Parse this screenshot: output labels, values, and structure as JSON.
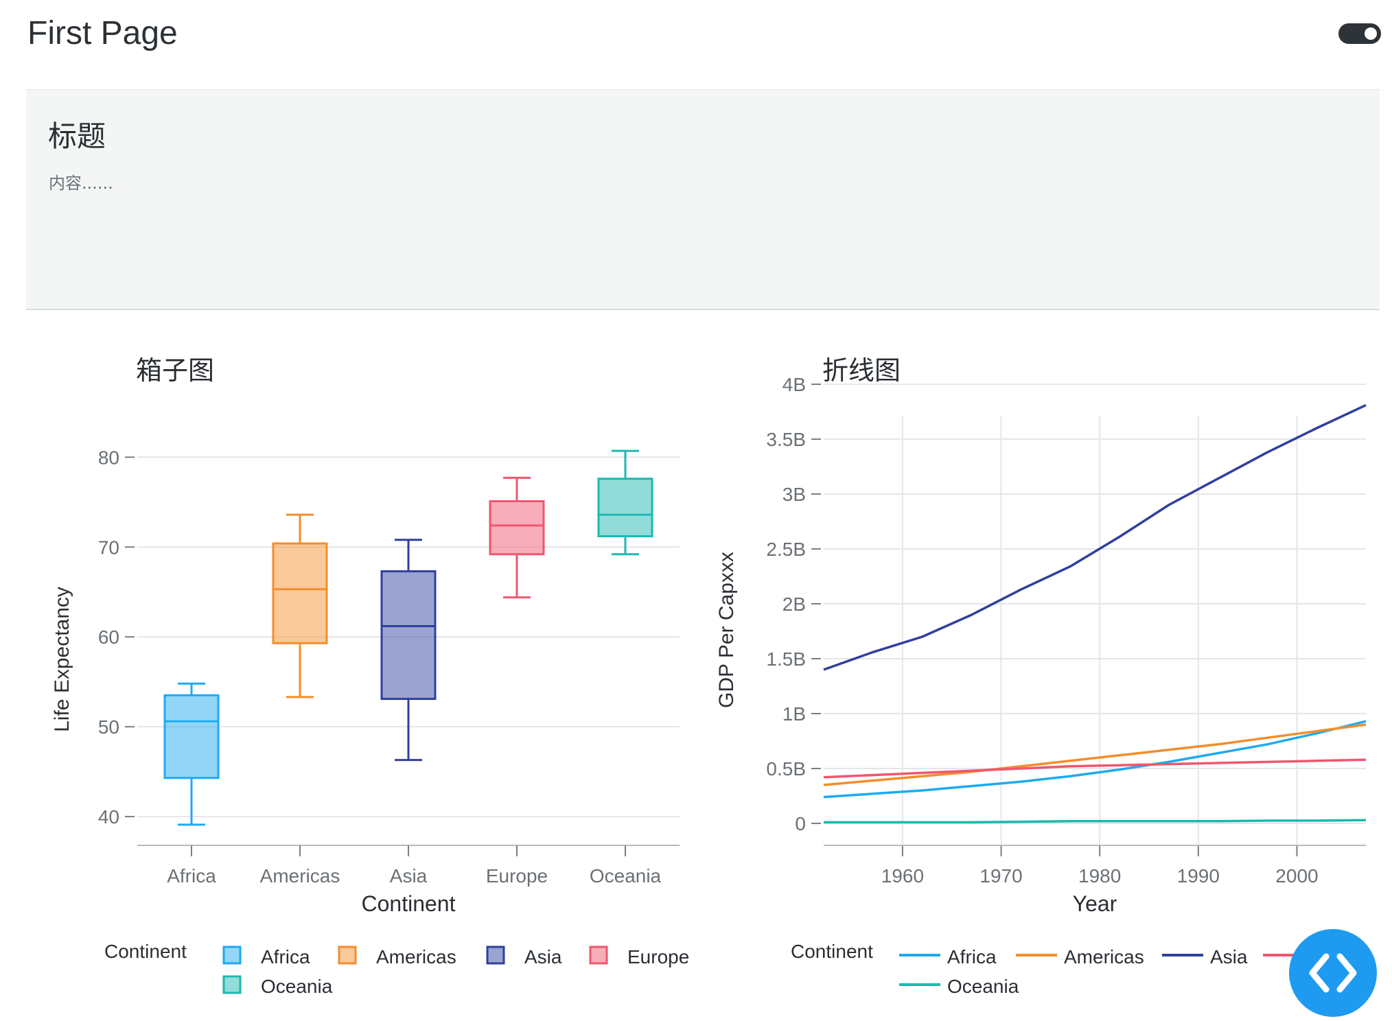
{
  "header": {
    "title": "First Page",
    "toggle_on": true
  },
  "hero": {
    "title": "标题",
    "content": "内容......"
  },
  "colors": {
    "Africa": "#1eaaf1",
    "Americas": "#f28e2b",
    "Asia": "#2f3f9e",
    "Europe": "#f0566e",
    "Oceania": "#1cb8b0"
  },
  "chart_data": [
    {
      "type": "box",
      "title": "箱子图",
      "xlabel": "Continent",
      "ylabel": "Life Expectancy",
      "ylim": [
        36.8,
        84.3
      ],
      "yticks": [
        40,
        50,
        60,
        70,
        80
      ],
      "categories": [
        "Africa",
        "Americas",
        "Asia",
        "Europe",
        "Oceania"
      ],
      "boxes": [
        {
          "name": "Africa",
          "min": 39.1,
          "q1": 44.3,
          "median": 50.6,
          "q3": 53.5,
          "max": 54.8
        },
        {
          "name": "Americas",
          "min": 53.3,
          "q1": 59.3,
          "median": 65.3,
          "q3": 70.4,
          "max": 73.6
        },
        {
          "name": "Asia",
          "min": 46.3,
          "q1": 53.1,
          "median": 61.2,
          "q3": 67.3,
          "max": 70.8
        },
        {
          "name": "Europe",
          "min": 64.4,
          "q1": 69.2,
          "median": 72.4,
          "q3": 75.1,
          "max": 77.7
        },
        {
          "name": "Oceania",
          "min": 69.2,
          "q1": 71.2,
          "median": 73.6,
          "q3": 77.6,
          "max": 80.7
        }
      ],
      "grid": true,
      "legend": {
        "title": "Continent",
        "position": "bottom",
        "entries": [
          "Africa",
          "Americas",
          "Asia",
          "Europe",
          "Oceania"
        ]
      }
    },
    {
      "type": "line",
      "title": "折线图",
      "xlabel": "Year",
      "ylabel": "GDP Per Capxxx",
      "xlim": [
        1952,
        2007
      ],
      "ylim": [
        -0.2,
        4.0
      ],
      "xticks": [
        1960,
        1970,
        1980,
        1990,
        2000
      ],
      "yticks": [
        0,
        0.5,
        1,
        1.5,
        2,
        2.5,
        3,
        3.5,
        4
      ],
      "ytick_labels": [
        "0",
        "0.5B",
        "1B",
        "1.5B",
        "2B",
        "2.5B",
        "3B",
        "3.5B",
        "4B"
      ],
      "x": [
        1952,
        1957,
        1962,
        1967,
        1972,
        1977,
        1982,
        1987,
        1992,
        1997,
        2002,
        2007
      ],
      "series": [
        {
          "name": "Africa",
          "values": [
            0.24,
            0.27,
            0.3,
            0.34,
            0.38,
            0.43,
            0.49,
            0.56,
            0.64,
            0.72,
            0.82,
            0.93
          ]
        },
        {
          "name": "Americas",
          "values": [
            0.35,
            0.39,
            0.43,
            0.47,
            0.52,
            0.57,
            0.62,
            0.67,
            0.72,
            0.78,
            0.84,
            0.9
          ]
        },
        {
          "name": "Asia",
          "values": [
            1.4,
            1.56,
            1.7,
            1.9,
            2.13,
            2.34,
            2.61,
            2.9,
            3.14,
            3.38,
            3.6,
            3.81
          ]
        },
        {
          "name": "Europe",
          "values": [
            0.42,
            0.44,
            0.46,
            0.48,
            0.5,
            0.52,
            0.53,
            0.54,
            0.55,
            0.56,
            0.57,
            0.58
          ]
        },
        {
          "name": "Oceania",
          "values": [
            0.01,
            0.01,
            0.01,
            0.01,
            0.015,
            0.02,
            0.02,
            0.02,
            0.02,
            0.025,
            0.025,
            0.03
          ]
        }
      ],
      "grid": true,
      "legend": {
        "title": "Continent",
        "position": "bottom",
        "entries": [
          "Africa",
          "Americas",
          "Asia",
          "Europe",
          "Oceania"
        ]
      }
    }
  ],
  "fab": {
    "icon": "code-icon"
  }
}
